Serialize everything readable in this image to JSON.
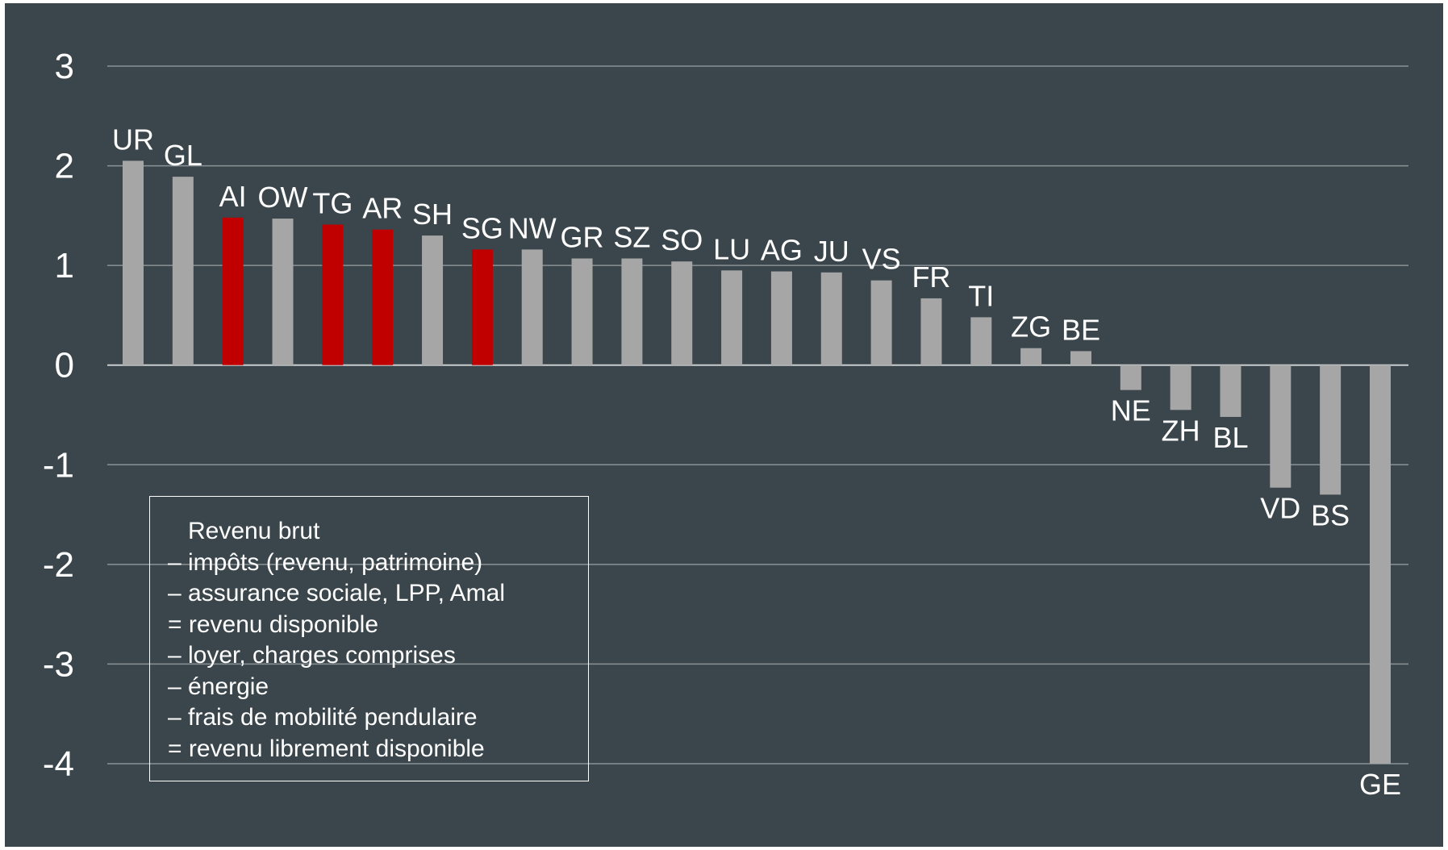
{
  "chart_data": {
    "type": "bar",
    "categories": [
      "UR",
      "GL",
      "AI",
      "OW",
      "TG",
      "AR",
      "SH",
      "SG",
      "NW",
      "GR",
      "SZ",
      "SO",
      "LU",
      "AG",
      "JU",
      "VS",
      "FR",
      "TI",
      "ZG",
      "BE",
      "NE",
      "ZH",
      "BL",
      "VD",
      "BS",
      "GE"
    ],
    "values": [
      2.05,
      1.89,
      1.48,
      1.47,
      1.41,
      1.36,
      1.3,
      1.16,
      1.16,
      1.07,
      1.07,
      1.04,
      0.95,
      0.94,
      0.93,
      0.85,
      0.67,
      0.48,
      0.17,
      0.14,
      -0.25,
      -0.45,
      -0.52,
      -1.23,
      -1.3,
      -4.0
    ],
    "highlighted": [
      "AI",
      "TG",
      "AR",
      "SG"
    ],
    "ylim": [
      -4,
      3
    ],
    "yticks": [
      "3",
      "2",
      "1",
      "0",
      "-1",
      "-2",
      "-3",
      "-4"
    ],
    "grid": true,
    "title": "",
    "xlabel": "",
    "ylabel": ""
  },
  "legend": {
    "lines": [
      "   Revenu brut",
      "– impôts (revenu, patrimoine)",
      "– assurance sociale, LPP, Amal",
      "= revenu disponible",
      "– loyer, charges comprises",
      "– énergie",
      "– frais de mobilité pendulaire",
      "= revenu librement disponible"
    ]
  },
  "colors": {
    "background": "#3a464b",
    "bar_default": "#a6a6a6",
    "bar_highlight": "#c00000",
    "gridline": "#8a9296",
    "text": "#ffffff"
  }
}
